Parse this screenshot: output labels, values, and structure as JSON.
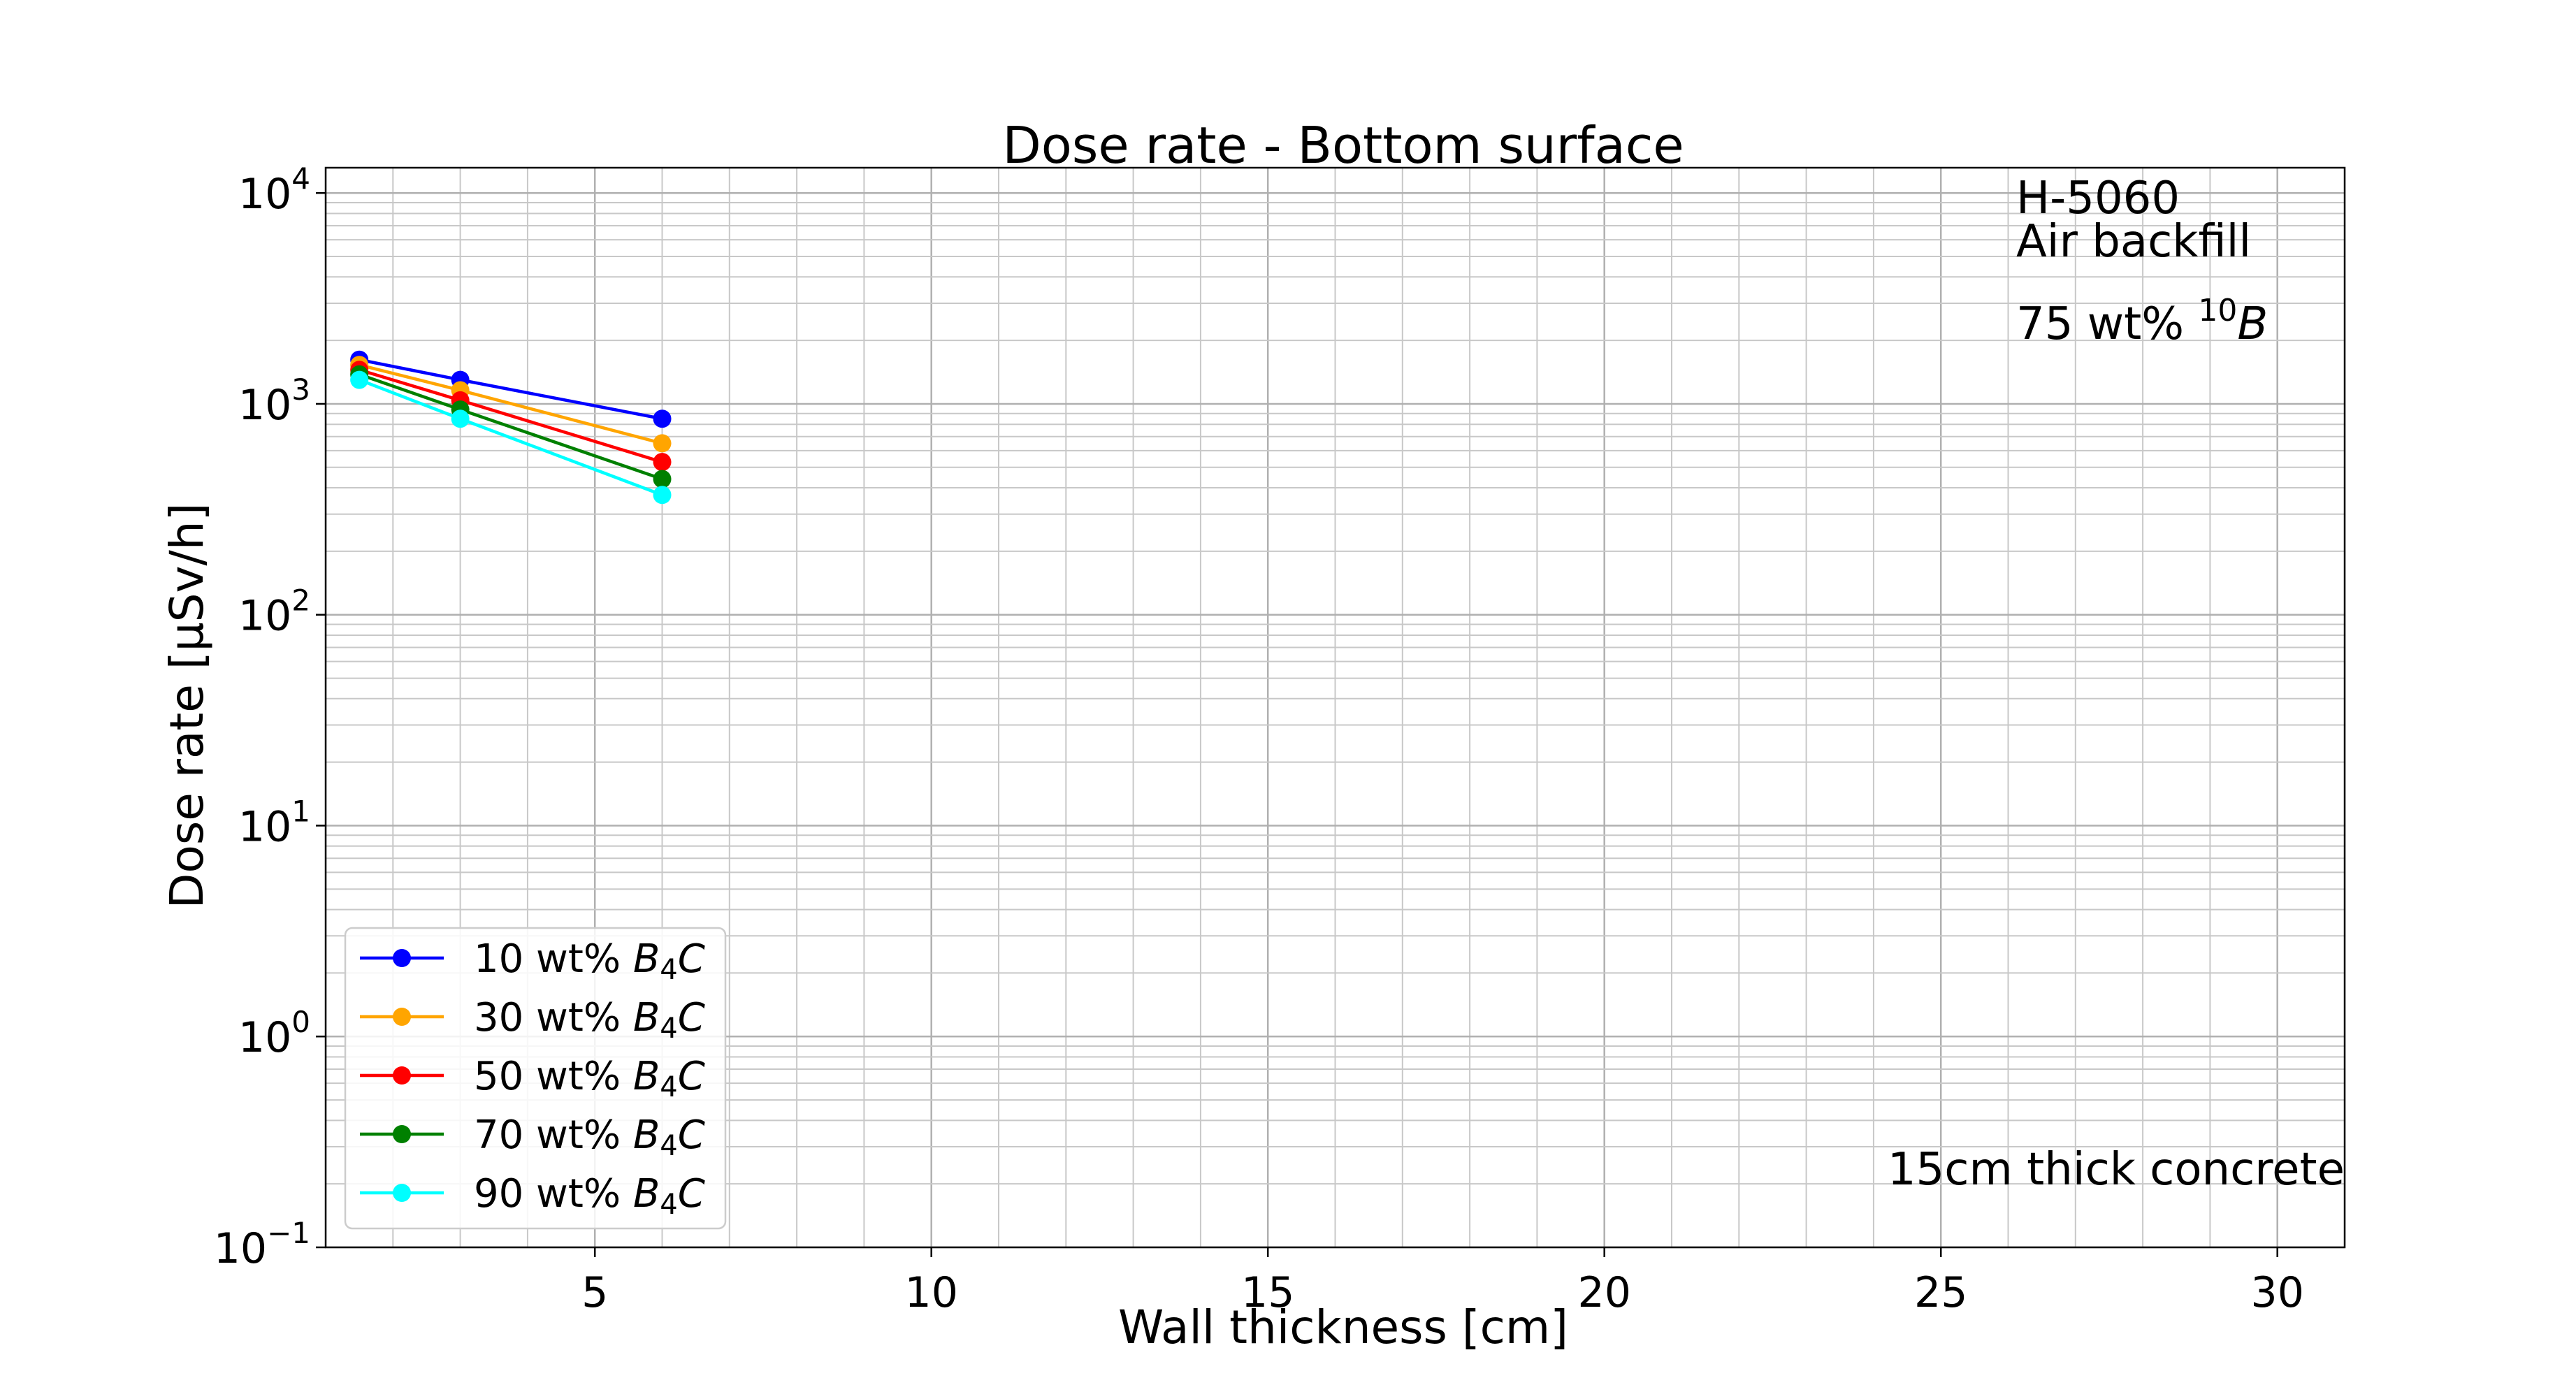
{
  "chart_data": {
    "type": "line",
    "title": "Dose rate - Bottom surface",
    "xlabel": "Wall thickness [cm]",
    "ylabel": "Dose rate [μSv/h]",
    "xlim": [
      1.0,
      31.0
    ],
    "ylim_log10": [
      -1,
      4.12
    ],
    "yscale": "log",
    "grid": "major and minor on",
    "legend_position": "lower-left",
    "x_ticks": [
      5,
      10,
      15,
      20,
      25,
      30
    ],
    "y_ticks": [
      {
        "base": "10",
        "exp": "4",
        "value": 10000
      },
      {
        "base": "10",
        "exp": "3",
        "value": 1000
      },
      {
        "base": "10",
        "exp": "2",
        "value": 100
      },
      {
        "base": "10",
        "exp": "1",
        "value": 10
      },
      {
        "base": "10",
        "exp": "0",
        "value": 1
      },
      {
        "base": "10",
        "exp": "−1",
        "value": 0.1
      }
    ],
    "annotations": {
      "model": "H-5060",
      "backfill": "Air backfill",
      "enrichment_prefix": "75 wt% ",
      "enrichment_sup": "10",
      "enrichment_element": "B",
      "concrete": "15cm thick concrete"
    },
    "x": [
      1.5,
      3,
      6
    ],
    "series": [
      {
        "name": "10 wt% B4C",
        "label_prefix": "10 wt% ",
        "color": "#0000ff",
        "values": [
          1620,
          1300,
          850
        ]
      },
      {
        "name": "30 wt% B4C",
        "label_prefix": "30 wt% ",
        "color": "#ffa500",
        "values": [
          1530,
          1160,
          650
        ]
      },
      {
        "name": "50 wt% B4C",
        "label_prefix": "50 wt% ",
        "color": "#ff0000",
        "values": [
          1450,
          1040,
          530
        ]
      },
      {
        "name": "70 wt% B4C",
        "label_prefix": "70 wt% ",
        "color": "#008000",
        "values": [
          1380,
          940,
          440
        ]
      },
      {
        "name": "90 wt% B4C",
        "label_prefix": "90 wt% ",
        "color": "#00ffff",
        "values": [
          1300,
          850,
          370
        ]
      }
    ]
  }
}
